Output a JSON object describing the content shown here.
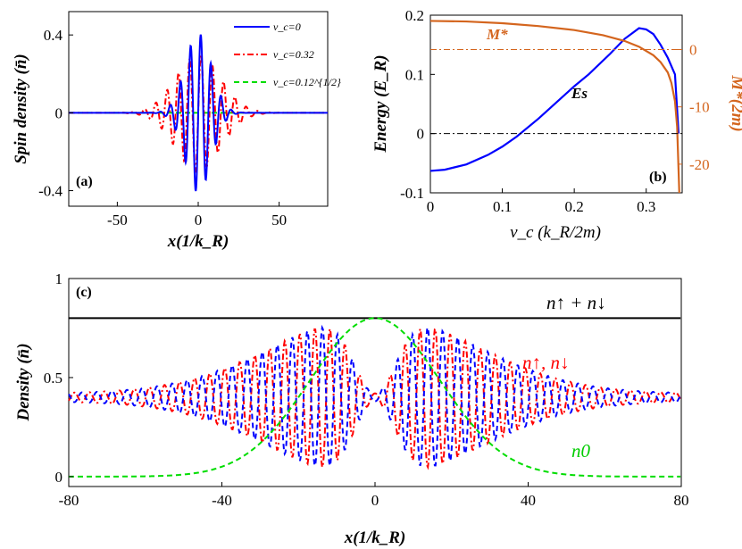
{
  "chart_data": [
    {
      "id": "a",
      "type": "line",
      "panel_label": "(a)",
      "ylabel": "Spin density (n̄)",
      "xlabel": "x(1/k_R)",
      "xlim": [
        -80,
        80
      ],
      "ylim": [
        -0.48,
        0.52
      ],
      "xticks": [
        -50,
        0,
        50
      ],
      "xtick_labels": [
        "-50",
        "0",
        "50"
      ],
      "yticks": [
        -0.4,
        0,
        0.4
      ],
      "ytick_labels": [
        "-0.4",
        "0",
        "0.4"
      ],
      "legend_position": "top-right",
      "series": [
        {
          "name": "v_c=0",
          "color": "#0000ff",
          "style": "solid",
          "amplitude": 0.41,
          "width": 8,
          "k": 1.0
        },
        {
          "name": "v_c=0.32",
          "color": "#ff0000",
          "style": "dashdot",
          "amplitude": 0.3,
          "width": 14,
          "k": 0.9
        },
        {
          "name": "v_c=0.12^{1/2}",
          "color": "#00dd00",
          "style": "dashed",
          "amplitude": 0.0,
          "width": 10,
          "k": 1.0
        }
      ]
    },
    {
      "id": "b",
      "type": "line",
      "panel_label": "(b)",
      "ylabel": "Energy (E_R)",
      "ylabel_right": "M*(2m)",
      "xlabel": "v_c (k_R/2m)",
      "xlim": [
        0,
        0.35
      ],
      "ylim": [
        -0.1,
        0.2
      ],
      "ylim_right": [
        -25,
        6
      ],
      "xticks": [
        0,
        0.1,
        0.2,
        0.3
      ],
      "xtick_labels": [
        "0",
        "0.1",
        "0.2",
        "0.3"
      ],
      "yticks": [
        -0.1,
        0,
        0.1,
        0.2
      ],
      "ytick_labels": [
        "-0.1",
        "0",
        "0.1",
        "0.2"
      ],
      "yticks_right": [
        0,
        -10,
        -20
      ],
      "ytick_labels_right": [
        "0",
        "-10",
        "-20"
      ],
      "annotations": [
        "M*",
        "Es"
      ],
      "series": [
        {
          "name": "Es",
          "axis": "left",
          "color": "#0000ff",
          "x": [
            0,
            0.02,
            0.05,
            0.08,
            0.1,
            0.12,
            0.15,
            0.18,
            0.2,
            0.22,
            0.25,
            0.27,
            0.29,
            0.3,
            0.31,
            0.32,
            0.33,
            0.34,
            0.345
          ],
          "y": [
            -0.063,
            -0.061,
            -0.052,
            -0.036,
            -0.022,
            -0.005,
            0.025,
            0.058,
            0.08,
            0.1,
            0.135,
            0.16,
            0.178,
            0.176,
            0.168,
            0.15,
            0.128,
            0.1,
            0.0
          ]
        },
        {
          "name": "M*",
          "axis": "right",
          "color": "#d4651e",
          "x": [
            0,
            0.05,
            0.1,
            0.15,
            0.2,
            0.24,
            0.27,
            0.29,
            0.31,
            0.32,
            0.33,
            0.335,
            0.34,
            0.343,
            0.346
          ],
          "y": [
            5.0,
            4.9,
            4.6,
            4.1,
            3.4,
            2.5,
            1.5,
            0.5,
            -1.0,
            -2.2,
            -4.0,
            -5.8,
            -9.0,
            -13.5,
            -25.0
          ]
        },
        {
          "name": "M*=0 reference",
          "axis": "right",
          "color": "#d4651e",
          "style": "dashdot",
          "x": [
            0,
            0.35
          ],
          "y": [
            0,
            0
          ]
        },
        {
          "name": "E=0 reference",
          "axis": "left",
          "color": "#000000",
          "style": "dashdot",
          "x": [
            0,
            0.35
          ],
          "y": [
            0,
            0
          ]
        }
      ]
    },
    {
      "id": "c",
      "type": "line",
      "panel_label": "(c)",
      "ylabel": "Density (n̄)",
      "xlabel": "x(1/k_R)",
      "xlim": [
        -80,
        80
      ],
      "ylim": [
        -0.05,
        1.0
      ],
      "xticks": [
        -80,
        -40,
        0,
        40,
        80
      ],
      "xtick_labels": [
        "-80",
        "-40",
        "0",
        "40",
        "80"
      ],
      "yticks": [
        0,
        0.5,
        1
      ],
      "ytick_labels": [
        "0",
        "0.5",
        "1"
      ],
      "annotations": [
        "n↑ + n↓",
        "n↑, n↓",
        "n0"
      ],
      "series": [
        {
          "name": "n↑ + n↓",
          "color": "#000000",
          "style": "solid",
          "constant": 0.8
        },
        {
          "name": "n↑",
          "color": "#ff0000",
          "style": "dashdot",
          "base": 0.4,
          "amplitude": 0.4,
          "width": 26,
          "k": 1.0
        },
        {
          "name": "n↓",
          "color": "#0000ff",
          "style": "dashed",
          "base": 0.4,
          "amplitude": 0.4,
          "width": 26,
          "k": 1.0
        },
        {
          "name": "n0",
          "color": "#00dd00",
          "style": "dashed",
          "peak": 0.8,
          "width": 17
        }
      ]
    }
  ]
}
